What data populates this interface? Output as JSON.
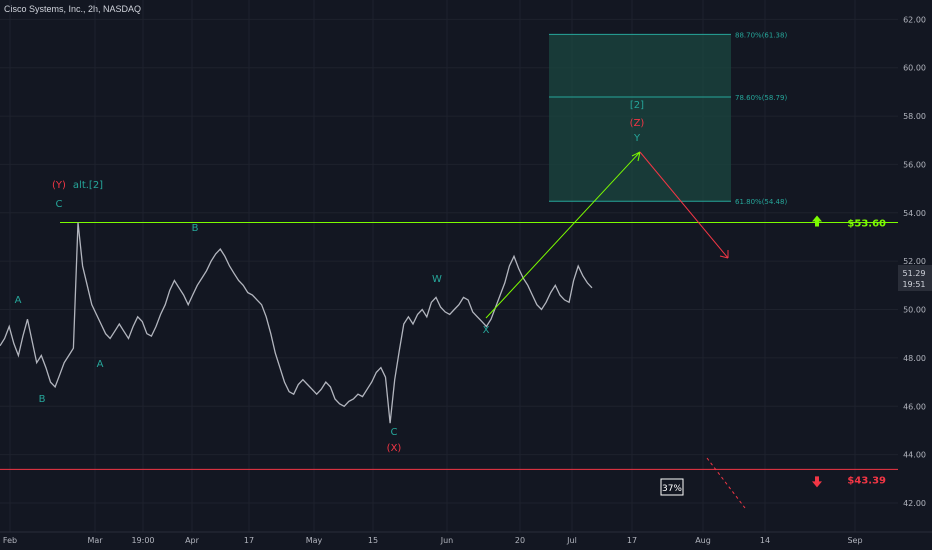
{
  "header": {
    "title": "Cisco Systems, Inc., 2h, NASDAQ"
  },
  "price_label": {
    "value": "51.29",
    "time": "19:51"
  },
  "colors": {
    "bg": "#131722",
    "candle": "#b2b5be",
    "grid": "#1e222d",
    "green": "#4caf50",
    "lime": "#7cfc00",
    "red": "#f23645",
    "teal": "#26a69a",
    "fib_box": "#1b4740",
    "axis_text": "#b2b5be"
  },
  "chart_data": {
    "type": "line",
    "title": "Cisco Systems, Inc., 2h, NASDAQ",
    "xlabel": "",
    "ylabel": "",
    "ylim": [
      40.8,
      62.8
    ],
    "y_ticks": [
      42.0,
      44.0,
      46.0,
      48.0,
      50.0,
      52.0,
      54.0,
      56.0,
      58.0,
      60.0,
      62.0
    ],
    "x_ticks": [
      "Feb",
      "Mar",
      "19:00",
      "Apr",
      "17",
      "May",
      "15",
      "Jun",
      "20",
      "Jul",
      "17",
      "Aug",
      "14",
      "Sep"
    ],
    "series": [
      {
        "values": [
          48.5,
          48.8,
          49.3,
          48.6,
          48.1,
          48.9,
          49.6,
          48.7,
          47.8,
          48.1,
          47.6,
          47.0,
          46.8,
          47.3,
          47.8,
          48.1,
          48.4,
          53.6,
          51.8,
          51.0,
          50.2,
          49.8,
          49.4,
          49.0,
          48.8,
          49.1,
          49.4,
          49.1,
          48.8,
          49.3,
          49.7,
          49.5,
          49.0,
          48.9,
          49.3,
          49.8,
          50.2,
          50.8,
          51.2,
          50.9,
          50.6,
          50.2,
          50.6,
          51.0,
          51.3,
          51.6,
          52.0,
          52.3,
          52.5,
          52.2,
          51.8,
          51.5,
          51.2,
          51.0,
          50.7,
          50.6,
          50.4,
          50.2,
          49.7,
          49.0,
          48.2,
          47.6,
          47.0,
          46.6,
          46.5,
          46.9,
          47.1,
          46.9,
          46.7,
          46.5,
          46.7,
          47.0,
          46.8,
          46.3,
          46.1,
          46.0,
          46.2,
          46.3,
          46.5,
          46.4,
          46.7,
          47.0,
          47.4,
          47.6,
          47.2,
          45.3,
          47.1,
          48.3,
          49.4,
          49.7,
          49.4,
          49.8,
          50.0,
          49.7,
          50.3,
          50.5,
          50.1,
          49.9,
          49.8,
          50.0,
          50.2,
          50.5,
          50.4,
          49.9,
          49.7,
          49.5,
          49.3,
          49.6,
          50.1,
          50.6,
          51.1,
          51.8,
          52.2,
          51.7,
          51.3,
          51.0,
          50.6,
          50.2,
          50.0,
          50.3,
          50.7,
          51.0,
          50.6,
          50.4,
          50.3,
          51.2,
          51.8,
          51.4,
          51.1,
          50.9
        ]
      }
    ],
    "fib_levels": [
      {
        "label": "88.70%(61.38)",
        "price": 61.38
      },
      {
        "label": "78.60%(58.79)",
        "price": 58.79
      },
      {
        "label": "61.80%(54.48)",
        "price": 54.48
      }
    ],
    "levels": [
      {
        "label": "$53.60",
        "price": 53.6
      },
      {
        "label": "$43.39",
        "price": 43.39
      }
    ],
    "wave_labels": {
      "A1": "A",
      "B1": "B",
      "C1": "C",
      "Y": "(Y)",
      "alt": "alt.[2]",
      "A2": "A",
      "B2": "B",
      "C2": "C",
      "X1": "(X)",
      "W": "W",
      "X2": "X",
      "Y2": "Y",
      "Z": "(Z)",
      "two": "[2]"
    },
    "badge": "37%"
  }
}
